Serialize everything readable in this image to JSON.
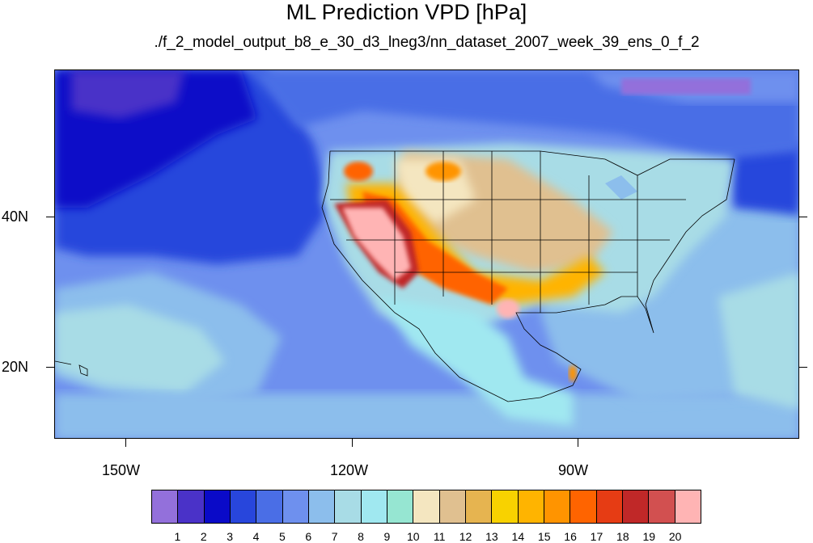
{
  "title": "ML Prediction VPD [hPa]",
  "subtitle": "./f_2_model_output_b8_e_30_d3_lneg3/nn_dataset_2007_week_39_ens_0_f_2",
  "axes": {
    "lon_labels": [
      "150W",
      "120W",
      "90W"
    ],
    "lat_labels": [
      "40N",
      "20N"
    ]
  },
  "colorbar": {
    "labels": [
      "1",
      "2",
      "3",
      "4",
      "5",
      "6",
      "7",
      "8",
      "9",
      "10",
      "11",
      "12",
      "13",
      "14",
      "15",
      "16",
      "17",
      "18",
      "19",
      "20"
    ],
    "colors": [
      "#9370db",
      "#4a32c8",
      "#0a0ac8",
      "#2846dc",
      "#4a6ee6",
      "#6e90ee",
      "#8cbeec",
      "#a8dce6",
      "#a0e8f0",
      "#96e6d2",
      "#f4e6c0",
      "#e0c090",
      "#e6b450",
      "#f8d200",
      "#ffb400",
      "#ff9400",
      "#ff6400",
      "#e63c14",
      "#c02828",
      "#d25050",
      "#ffb4b4"
    ]
  },
  "colors": {
    "ocean_deep": "#0a0ac8",
    "ocean_mid": "#4a6ee6",
    "ocean_light": "#8cbeec",
    "land_humid": "#a8dce6",
    "land_mid": "#e0c090",
    "land_dry": "#ff9400",
    "land_very_dry": "#ffb4b4"
  }
}
